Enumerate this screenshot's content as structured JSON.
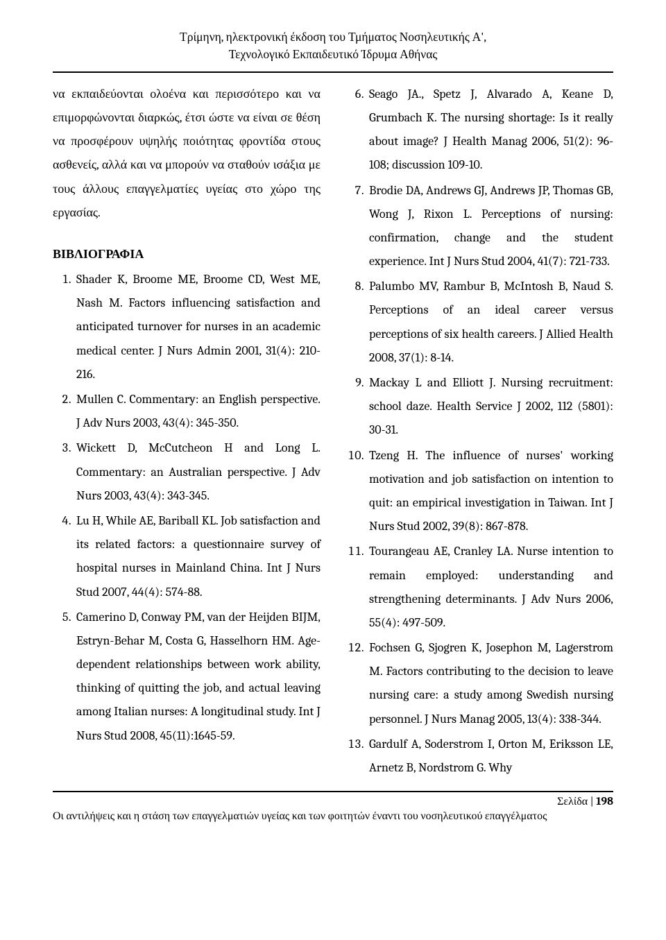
{
  "header": {
    "line1": "Τρίμηνη, ηλεκτρονική έκδοση του Τμήματος Νοσηλευτικής Α',",
    "line2": "Τεχνολογικό Εκπαιδευτικό Ίδρυμα Αθήνας"
  },
  "intro": "να εκπαιδεύονται ολοένα και περισσότερο και να επιμορφώνονται διαρκώς, έτσι ώστε να είναι σε θέση να προσφέρουν υψηλής ποιότητας φροντίδα στους ασθενείς, αλλά και να μπορούν να σταθούν ισάξια με τους άλλους επαγγελματίες υγείας στο χώρο της εργασίας.",
  "bib_heading": "ΒΙΒΛΙΟΓΡΑΦΙΑ",
  "refs_left": [
    "Shader K, Broome ME, Broome CD, West ME, Nash M. Factors influencing satisfaction and anticipated turnover for nurses in an academic medical center. J Nurs Admin 2001, 31(4): 210-216.",
    "Mullen C. Commentary: an English perspective. J Adv Nurs 2003, 43(4): 345-350.",
    "Wickett D, McCutcheon H and Long L. Commentary: an Australian perspective. J Adv Nurs 2003, 43(4): 343-345.",
    "Lu H, While AE, Bariball KL. Job satisfaction and its related factors: a questionnaire survey of hospital nurses in Mainland China. Int J  Nurs Stud 2007, 44(4): 574-88.",
    "Camerino D, Conway PM, van der Heijden BIJM, Estryn-Behar M, Costa G, Hasselhorn HM. Age-dependent relationships between  work ability, thinking of quitting the job, and actual leaving among Italian nurses: A longitudinal study. Int J Nurs Stud 2008, 45(11):1645-59."
  ],
  "refs_right_start": 6,
  "refs_right": [
    "Seago JA., Spetz J, Alvarado A, Keane D, Grumbach K. The nursing shortage: Is it really about image? J Health Manag 2006, 51(2): 96-108; discussion 109-10.",
    "Brodie DA, Andrews GJ, Andrews JP, Thomas GB,  Wong J, Rixon L. Perceptions of nursing: confirmation, change and the student experience. Int J Nurs Stud 2004, 41(7): 721-733.",
    "Palumbo MV, Rambur B, McIntosh B, Naud S. Perceptions of an ideal career versus perceptions of six health careers. J Allied Health 2008, 37(1): 8-14.",
    "Mackay L and Elliott J. Nursing recruitment: school daze. Health Service J 2002, 112 (5801): 30-31.",
    "Tzeng H. The influence of nurses' working motivation and job satisfaction on intention to quit: an empirical investigation in Taiwan. Int J  Nurs Stud 2002, 39(8): 867-878.",
    "Tourangeau AE, Cranley LA. Nurse intention to remain employed: understanding and strengthening determinants. J Adv Nurs 2006, 55(4): 497-509.",
    "Fochsen G, Sjogren K, Josephon M, Lagerstrom M. Factors contributing to the decision to leave nursing care: a study among Swedish nursing personnel. J Nurs Manag 2005, 13(4): 338-344.",
    "Gardulf A, Soderstrom  I, Orton M, Eriksson LE, Arnetz B, Nordstrom G. Why"
  ],
  "footer": {
    "page_label": "Σελίδα | ",
    "page_number": "198",
    "running": "Οι αντιλήψεις και η στάση των επαγγελματιών υγείας και των φοιτητών έναντι του νοσηλευτικού επαγγέλματος"
  }
}
